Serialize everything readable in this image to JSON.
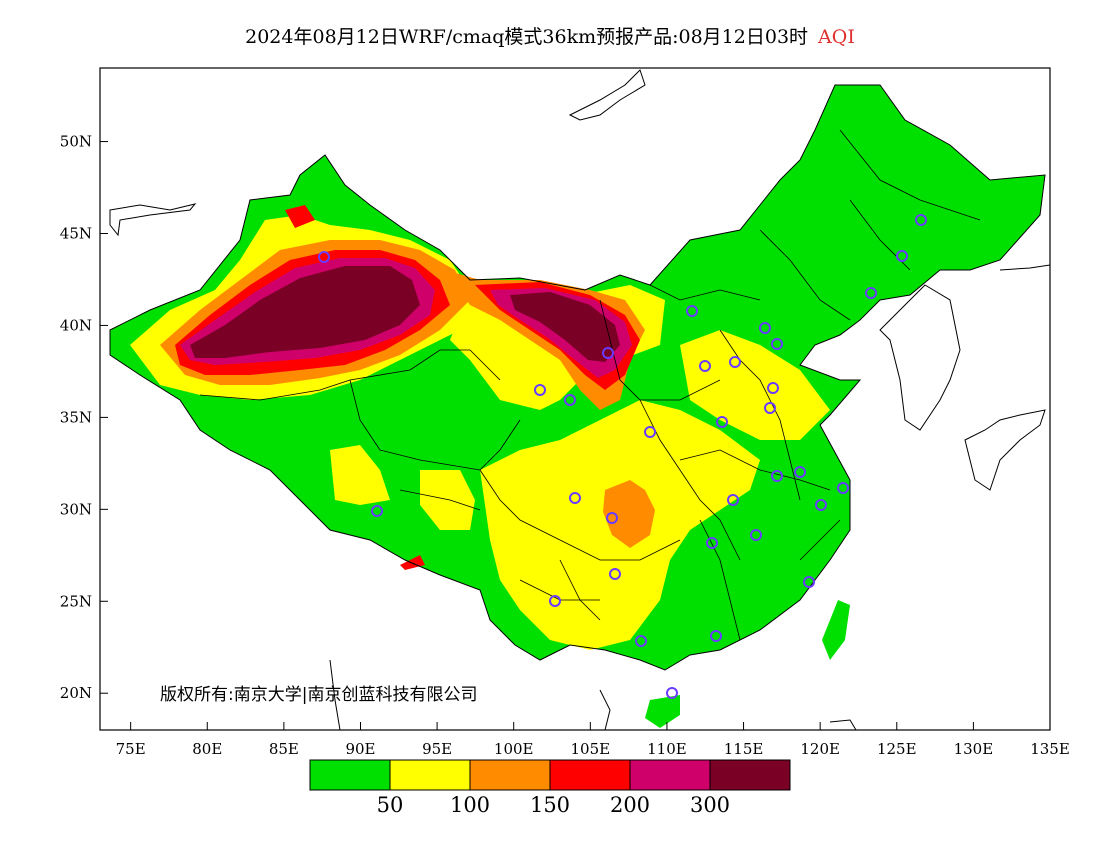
{
  "title": {
    "main": "2024年08月12日WRF/cmaq模式36km预报产品:08月12日03时",
    "variable": "AQI"
  },
  "copyright": "版权所有:南京大学|南京创蓝科技有限公司",
  "axes": {
    "lon_ticks": [
      "75E",
      "80E",
      "85E",
      "90E",
      "95E",
      "100E",
      "105E",
      "110E",
      "115E",
      "120E",
      "125E",
      "130E",
      "135E"
    ],
    "lat_ticks": [
      "50N",
      "45N",
      "40N",
      "35N",
      "30N",
      "25N",
      "20N"
    ],
    "lon_range": [
      73,
      135
    ],
    "lat_range": [
      18,
      54
    ]
  },
  "legend": {
    "colors": [
      "#00e000",
      "#ffff00",
      "#ff8c00",
      "#ff0000",
      "#d0006a",
      "#7a0026"
    ],
    "labels": [
      "50",
      "100",
      "150",
      "200",
      "300"
    ]
  }
}
